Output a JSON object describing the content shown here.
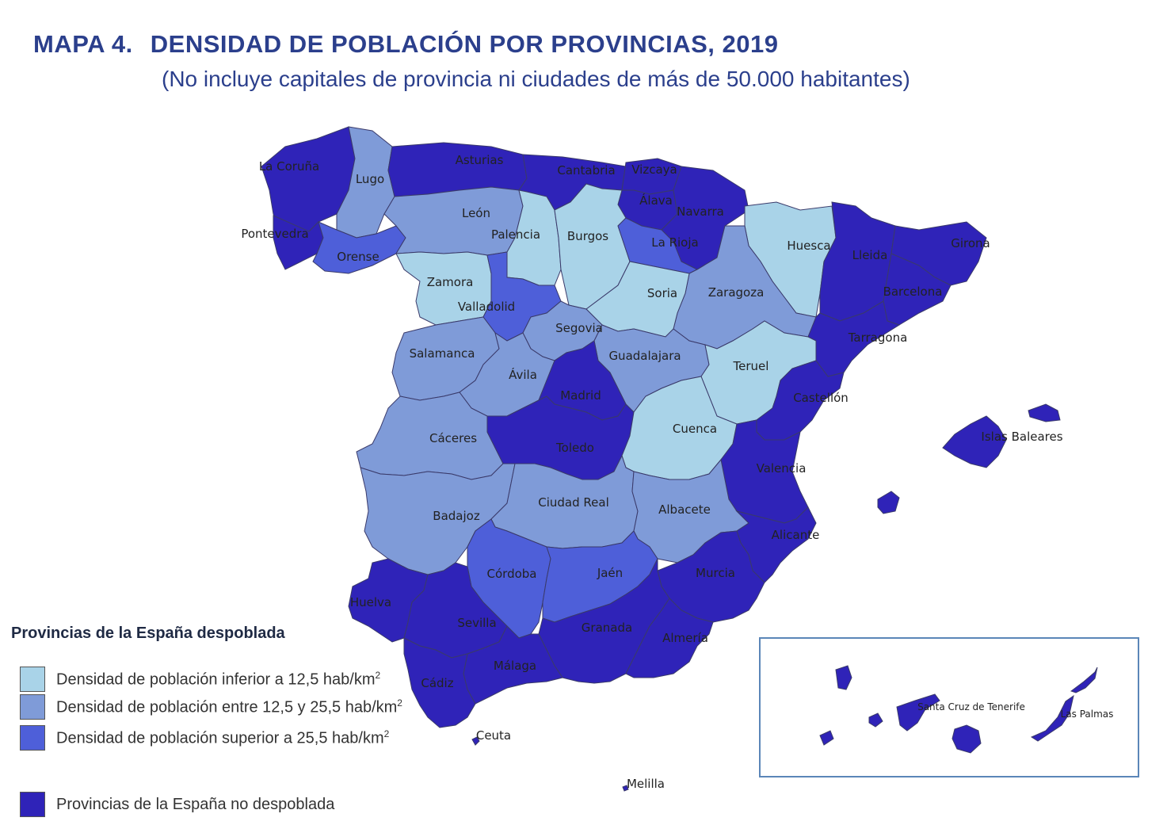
{
  "title": {
    "number": "MAPA 4.",
    "text": "DENSIDAD DE POBLACIÓN POR PROVINCIAS, 2019",
    "subtitle": "(No incluye capitales de provincia ni ciudades de más de 50.000 habitantes)"
  },
  "colors": {
    "low": "#a9d3e8",
    "mid": "#7f9bd8",
    "high": "#4e5fd9",
    "not_depopulated": "#2f23b8"
  },
  "legend": {
    "title": "Provincias de la España despoblada",
    "items": [
      {
        "label": "Densidad de población inferior a 12,5 hab/km",
        "sup": "2",
        "class": "low"
      },
      {
        "label": "Densidad de población entre 12,5 y 25,5 hab/km",
        "sup": "2",
        "class": "mid"
      },
      {
        "label": "Densidad de población superior a 25,5 hab/km",
        "sup": "2",
        "class": "high"
      }
    ],
    "other": {
      "label": "Provincias de la España no despoblada",
      "class": "not_depopulated"
    }
  },
  "provinces": [
    {
      "name": "La Coruña",
      "class": "not_depopulated"
    },
    {
      "name": "Lugo",
      "class": "mid"
    },
    {
      "name": "Asturias",
      "class": "not_depopulated"
    },
    {
      "name": "Cantabria",
      "class": "not_depopulated"
    },
    {
      "name": "Vizcaya",
      "class": "not_depopulated"
    },
    {
      "name": "Álava",
      "class": "not_depopulated"
    },
    {
      "name": "Navarra",
      "class": "not_depopulated"
    },
    {
      "name": "Pontevedra",
      "class": "not_depopulated"
    },
    {
      "name": "Orense",
      "class": "high"
    },
    {
      "name": "León",
      "class": "mid"
    },
    {
      "name": "Palencia",
      "class": "low"
    },
    {
      "name": "Burgos",
      "class": "low"
    },
    {
      "name": "La Rioja",
      "class": "high"
    },
    {
      "name": "Huesca",
      "class": "low"
    },
    {
      "name": "Lleida",
      "class": "not_depopulated"
    },
    {
      "name": "Girona",
      "class": "not_depopulated"
    },
    {
      "name": "Barcelona",
      "class": "not_depopulated"
    },
    {
      "name": "Zamora",
      "class": "low"
    },
    {
      "name": "Valladolid",
      "class": "high"
    },
    {
      "name": "Soria",
      "class": "low"
    },
    {
      "name": "Zaragoza",
      "class": "mid"
    },
    {
      "name": "Segovia",
      "class": "mid"
    },
    {
      "name": "Tarragona",
      "class": "not_depopulated"
    },
    {
      "name": "Salamanca",
      "class": "mid"
    },
    {
      "name": "Guadalajara",
      "class": "mid"
    },
    {
      "name": "Teruel",
      "class": "low"
    },
    {
      "name": "Ávila",
      "class": "mid"
    },
    {
      "name": "Madrid",
      "class": "not_depopulated"
    },
    {
      "name": "Castellón",
      "class": "not_depopulated"
    },
    {
      "name": "Cáceres",
      "class": "mid"
    },
    {
      "name": "Cuenca",
      "class": "low"
    },
    {
      "name": "Toledo",
      "class": "not_depopulated"
    },
    {
      "name": "Islas Baleares",
      "class": "not_depopulated"
    },
    {
      "name": "Valencia",
      "class": "not_depopulated"
    },
    {
      "name": "Ciudad Real",
      "class": "mid"
    },
    {
      "name": "Albacete",
      "class": "mid"
    },
    {
      "name": "Badajoz",
      "class": "mid"
    },
    {
      "name": "Alicante",
      "class": "not_depopulated"
    },
    {
      "name": "Córdoba",
      "class": "high"
    },
    {
      "name": "Jaén",
      "class": "high"
    },
    {
      "name": "Murcia",
      "class": "not_depopulated"
    },
    {
      "name": "Huelva",
      "class": "not_depopulated"
    },
    {
      "name": "Sevilla",
      "class": "not_depopulated"
    },
    {
      "name": "Granada",
      "class": "not_depopulated"
    },
    {
      "name": "Almería",
      "class": "not_depopulated"
    },
    {
      "name": "Málaga",
      "class": "not_depopulated"
    },
    {
      "name": "Cádiz",
      "class": "not_depopulated"
    },
    {
      "name": "Ceuta",
      "class": "not_depopulated"
    },
    {
      "name": "Melilla",
      "class": "not_depopulated"
    },
    {
      "name": "Santa Cruz de Tenerife",
      "class": "not_depopulated"
    },
    {
      "name": "Las Palmas",
      "class": "not_depopulated"
    }
  ]
}
